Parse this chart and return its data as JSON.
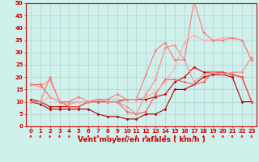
{
  "xlabel": "Vent moyen/en rafales ( km/h )",
  "xlim": [
    -0.5,
    23.5
  ],
  "ylim": [
    0,
    50
  ],
  "yticks": [
    0,
    5,
    10,
    15,
    20,
    25,
    30,
    35,
    40,
    45,
    50
  ],
  "xticks": [
    0,
    1,
    2,
    3,
    4,
    5,
    6,
    7,
    8,
    9,
    10,
    11,
    12,
    13,
    14,
    15,
    16,
    17,
    18,
    19,
    20,
    21,
    22,
    23
  ],
  "background_color": "#cff0eb",
  "grid_color": "#aacccc",
  "series": [
    {
      "x": [
        0,
        1,
        2,
        3,
        4,
        5,
        6,
        7,
        8,
        9,
        10,
        11,
        12,
        13,
        14,
        15,
        16,
        17,
        18,
        19,
        20,
        21,
        22,
        23
      ],
      "y": [
        10,
        9,
        7,
        7,
        7,
        7,
        7,
        5,
        4,
        4,
        3,
        3,
        5,
        5,
        7,
        15,
        15,
        17,
        20,
        21,
        21,
        20,
        10,
        10
      ],
      "color": "#aa0000",
      "linewidth": 0.8,
      "marker": "D",
      "markersize": 1.5
    },
    {
      "x": [
        0,
        1,
        2,
        3,
        4,
        5,
        6,
        7,
        8,
        9,
        10,
        11,
        12,
        13,
        14,
        15,
        16,
        17,
        18,
        19,
        20,
        21,
        22,
        23
      ],
      "y": [
        11,
        10,
        8,
        8,
        8,
        8,
        10,
        10,
        10,
        10,
        11,
        11,
        11,
        12,
        13,
        18,
        20,
        24,
        22,
        22,
        22,
        21,
        20,
        10
      ],
      "color": "#cc0000",
      "linewidth": 0.8,
      "marker": "D",
      "markersize": 1.5
    },
    {
      "x": [
        0,
        1,
        2,
        3,
        4,
        5,
        6,
        7,
        8,
        9,
        10,
        11,
        12,
        13,
        14,
        15,
        16,
        17,
        18,
        19,
        20,
        21,
        22,
        23
      ],
      "y": [
        17,
        17,
        12,
        10,
        8,
        8,
        10,
        10,
        10,
        10,
        6,
        5,
        6,
        13,
        19,
        19,
        18,
        17,
        18,
        22,
        22,
        21,
        20,
        10
      ],
      "color": "#ff5555",
      "linewidth": 0.8,
      "marker": "D",
      "markersize": 1.5
    },
    {
      "x": [
        0,
        1,
        2,
        3,
        4,
        5,
        6,
        7,
        8,
        9,
        10,
        11,
        12,
        13,
        14,
        15,
        16,
        17,
        18,
        19,
        20,
        21,
        22,
        23
      ],
      "y": [
        17,
        16,
        19,
        10,
        9,
        10,
        10,
        11,
        10,
        10,
        8,
        5,
        13,
        19,
        32,
        33,
        27,
        18,
        21,
        22,
        21,
        22,
        22,
        28
      ],
      "color": "#ff8888",
      "linewidth": 0.8,
      "marker": "D",
      "markersize": 1.5
    },
    {
      "x": [
        0,
        1,
        2,
        3,
        4,
        5,
        6,
        7,
        8,
        9,
        10,
        11,
        12,
        13,
        14,
        15,
        16,
        17,
        18,
        19,
        20,
        21,
        22,
        23
      ],
      "y": [
        10,
        10,
        12,
        10,
        10,
        10,
        10,
        11,
        11,
        11,
        11,
        11,
        12,
        14,
        18,
        24,
        34,
        37,
        35,
        35,
        36,
        36,
        35,
        27
      ],
      "color": "#ffaaaa",
      "linewidth": 0.8,
      "marker": "D",
      "markersize": 1.5
    },
    {
      "x": [
        0,
        1,
        2,
        3,
        4,
        5,
        6,
        7,
        8,
        9,
        10,
        11,
        12,
        13,
        14,
        15,
        16,
        17,
        18,
        19,
        20,
        21,
        22,
        23
      ],
      "y": [
        10,
        10,
        20,
        10,
        10,
        12,
        10,
        11,
        11,
        13,
        11,
        11,
        21,
        31,
        34,
        27,
        27,
        51,
        38,
        35,
        35,
        36,
        35,
        27
      ],
      "color": "#ff7777",
      "linewidth": 0.8,
      "marker": "D",
      "markersize": 1.5
    }
  ],
  "axis_color": "#cc0000",
  "tick_fontsize": 5,
  "label_fontsize": 6.5
}
